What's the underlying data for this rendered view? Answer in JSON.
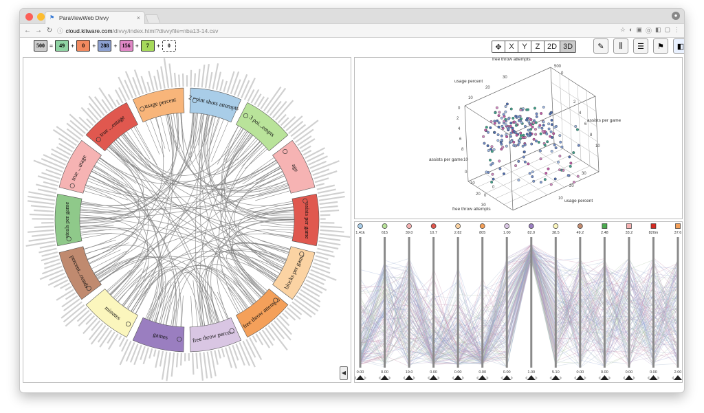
{
  "browser": {
    "tab_title": "ParaViewWeb Divvy",
    "url_host": "cloud.kitware.com",
    "url_path": "/divvy/index.html?divvyfile=nba13-14.csv"
  },
  "selection": [
    {
      "value": "500",
      "color": "#cccccc"
    },
    {
      "value": "49",
      "color": "#8fd3a3"
    },
    {
      "value": "0",
      "color": "#f1895f"
    },
    {
      "value": "288",
      "color": "#8ca0d0"
    },
    {
      "value": "156",
      "color": "#e088c6"
    },
    {
      "value": "7",
      "color": "#a6d95b"
    },
    {
      "value": "0",
      "color": "#ffffff"
    }
  ],
  "operators": [
    "=",
    "+",
    "+",
    "+",
    "+",
    "+",
    "+"
  ],
  "view_buttons": [
    "X",
    "Y",
    "Z",
    "2D",
    "3D"
  ],
  "chord": {
    "labels": [
      {
        "text": "2 point shots attempts",
        "color": "#a9cde8"
      },
      {
        "text": "3 poi...empts",
        "color": "#b9e39a"
      },
      {
        "text": "age",
        "color": "#f6b3b3"
      },
      {
        "text": "assists per game",
        "color": "#e0584f"
      },
      {
        "text": "blocks per game",
        "color": "#fbd3a3"
      },
      {
        "text": "free throw attempts",
        "color": "#f4a05a"
      },
      {
        "text": "free throw percent",
        "color": "#d9c6e3"
      },
      {
        "text": "games",
        "color": "#9a7ec0"
      },
      {
        "text": "minutes",
        "color": "#fbf6bd"
      },
      {
        "text": "percent...ounds",
        "color": "#c08a6f"
      },
      {
        "text": "steals per game",
        "color": "#8fc98a"
      },
      {
        "text": "true ...utage",
        "color": "#f6b3b3"
      },
      {
        "text": "true ...entage",
        "color": "#e0584f"
      },
      {
        "text": "usage percent",
        "color": "#f8b57a"
      }
    ]
  },
  "scatter": {
    "axis_labels": [
      "free throw attempts",
      "usage percent",
      "assists per game",
      "assists per game",
      "usage percent",
      "free throw attempts"
    ],
    "ticks": [
      "500",
      "0",
      "30",
      "20",
      "10",
      "0",
      "2",
      "4",
      "6",
      "8",
      "10",
      "2",
      "4",
      "6",
      "8",
      "10",
      "0",
      "10",
      "20",
      "30",
      "10",
      "20",
      "30",
      "0",
      "0"
    ]
  },
  "parallel": {
    "axes": [
      {
        "color": "#a9cde8",
        "top": "1.41k",
        "bottom": "0.00"
      },
      {
        "color": "#b9e39a",
        "top": "615",
        "bottom": "0.00"
      },
      {
        "color": "#f6b3b3",
        "top": "39.0",
        "bottom": "19.0"
      },
      {
        "color": "#e0584f",
        "top": "10.7",
        "bottom": "0.00"
      },
      {
        "color": "#fbd3a3",
        "top": "2.82",
        "bottom": "0.00"
      },
      {
        "color": "#f4a05a",
        "top": "805",
        "bottom": "0.00"
      },
      {
        "color": "#d9c6e3",
        "top": "1.00",
        "bottom": "0.00"
      },
      {
        "color": "#9a7ec0",
        "top": "82.0",
        "bottom": "1.00"
      },
      {
        "color": "#fbf6bd",
        "top": "38.5",
        "bottom": "5.10"
      },
      {
        "color": "#c08a6f",
        "top": "49.2",
        "bottom": "0.00"
      },
      {
        "color": "#4bab4f",
        "top": "2.48",
        "bottom": "0.00"
      },
      {
        "color": "#f6b3b3",
        "top": "33.2",
        "bottom": "0.00"
      },
      {
        "color": "#d52a22",
        "top": "820m",
        "bottom": "0.00"
      },
      {
        "color": "#f4a05a",
        "top": "37.6",
        "bottom": "2.00"
      }
    ]
  }
}
